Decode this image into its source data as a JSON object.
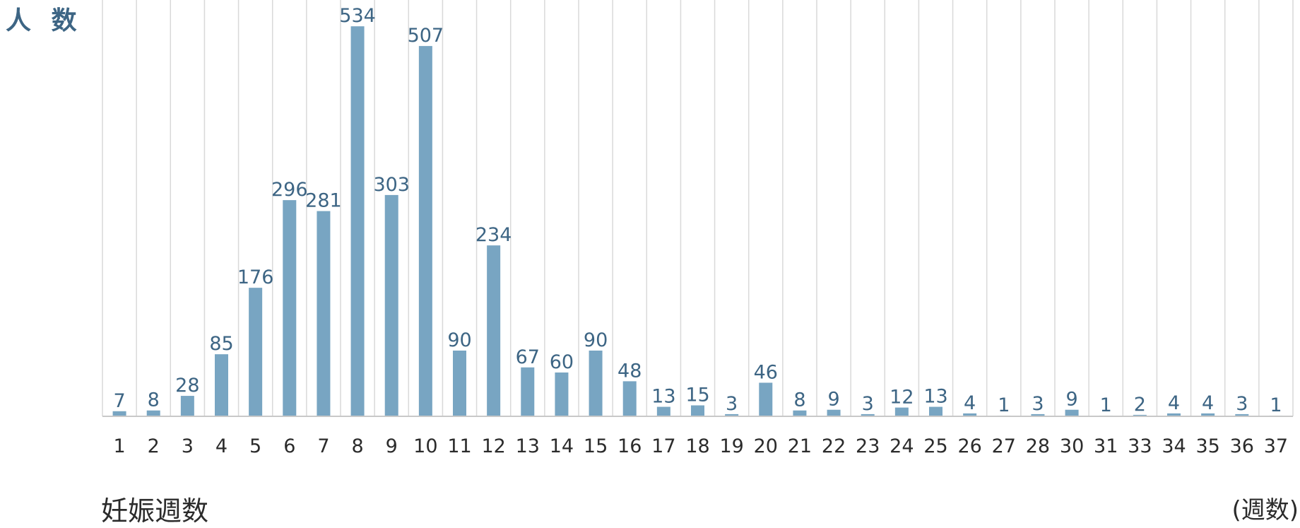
{
  "chart_data": {
    "type": "bar",
    "ylabel": "人 数",
    "xlabel": "妊娠週数",
    "xunit": "(週数)",
    "categories": [
      "1",
      "2",
      "3",
      "4",
      "5",
      "6",
      "7",
      "8",
      "9",
      "10",
      "11",
      "12",
      "13",
      "14",
      "15",
      "16",
      "17",
      "18",
      "19",
      "20",
      "21",
      "22",
      "23",
      "24",
      "25",
      "26",
      "27",
      "28",
      "30",
      "31",
      "33",
      "34",
      "35",
      "36",
      "37"
    ],
    "values": [
      7,
      8,
      28,
      85,
      176,
      296,
      281,
      534,
      303,
      507,
      90,
      234,
      67,
      60,
      90,
      48,
      13,
      15,
      3,
      46,
      8,
      9,
      3,
      12,
      13,
      4,
      1,
      3,
      9,
      1,
      2,
      4,
      4,
      3,
      1
    ],
    "ylim": [
      0,
      570
    ],
    "grid": "vertical",
    "colors": {
      "bar": "#78a5c2",
      "label": "#3d6584",
      "grid": "#d9d9d9",
      "axis": "#c8c8c8"
    }
  }
}
